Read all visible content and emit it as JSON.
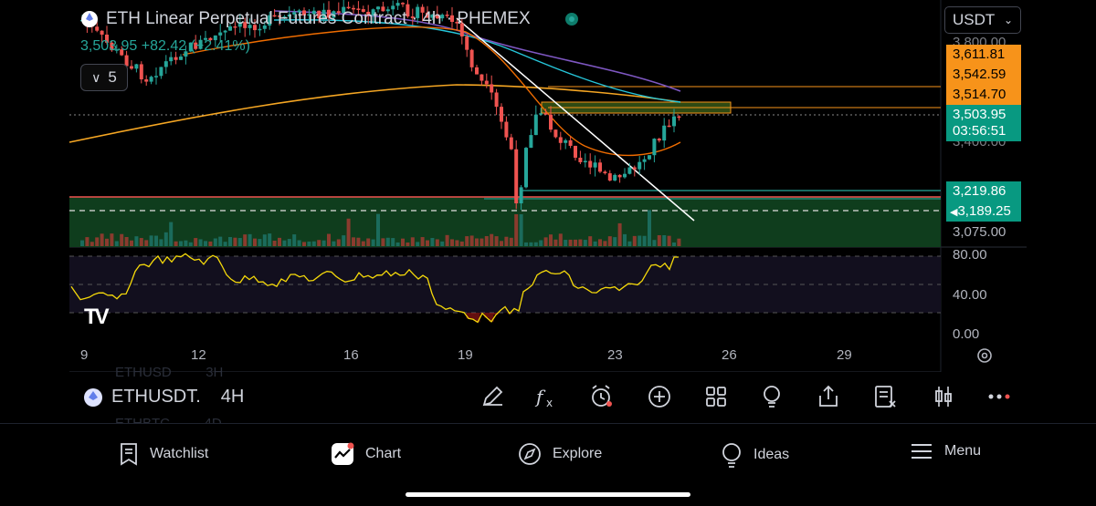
{
  "header": {
    "title": "ETH Linear Perpetual Futures Contract · 4h · PHEMEX",
    "quote": "3,503.95 +82.42 (+2.41%)",
    "interval_chip": "5",
    "currency": "USDT"
  },
  "price_labels": [
    {
      "text": "3,611.81",
      "style": "orange"
    },
    {
      "text": "3,542.59",
      "style": "orange"
    },
    {
      "text": "3,514.70",
      "style": "orange"
    },
    {
      "text": "3,503.95",
      "style": "teal"
    },
    {
      "text": "03:56:51",
      "style": "teal"
    },
    {
      "text": "3,219.86",
      "style": "teal"
    },
    {
      "text": "3,189.25",
      "style": "teal"
    },
    {
      "text": "3,075.00",
      "style": "plain"
    }
  ],
  "price_axis_partial": [
    "3,800.00",
    "3,400.00"
  ],
  "rsi_axis": [
    "80.00",
    "40.00",
    "0.00"
  ],
  "x_axis": [
    "9",
    "12",
    "16",
    "19",
    "23",
    "26",
    "29"
  ],
  "toolbar": {
    "symbol": "ETHUSDT.",
    "interval": "4H",
    "ghost_rows": [
      [
        "ETHUSD",
        "3H"
      ],
      [
        "ETHBTC",
        "4D"
      ]
    ]
  },
  "bottom_nav": [
    {
      "label": "Watchlist",
      "icon": "watchlist-icon"
    },
    {
      "label": "Chart",
      "icon": "chart-icon"
    },
    {
      "label": "Explore",
      "icon": "compass-icon"
    },
    {
      "label": "Ideas",
      "icon": "lightbulb-icon"
    },
    {
      "label": "Menu",
      "icon": "menu-icon"
    }
  ],
  "colors": {
    "up": "#26a69a",
    "down": "#ef5350",
    "accent": "#f7931a",
    "teal": "#089981"
  }
}
